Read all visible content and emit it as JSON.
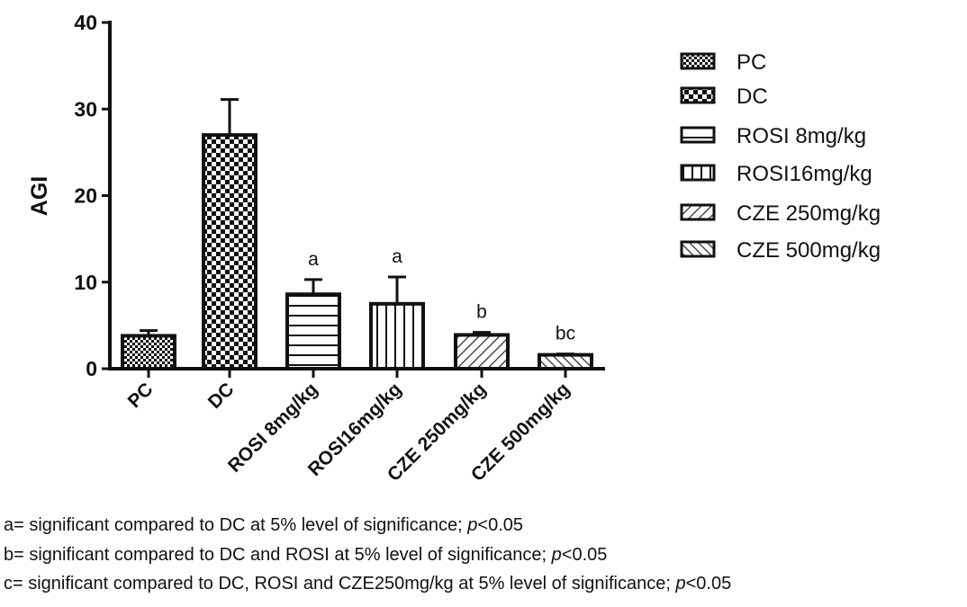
{
  "chart_data": {
    "type": "bar",
    "title": "",
    "xlabel": "",
    "ylabel": "AGI",
    "ylim": [
      0,
      40
    ],
    "yticks": [
      "0",
      "10",
      "20",
      "30",
      "40"
    ],
    "categories": [
      "PC",
      "DC",
      "ROSI 8mg/kg",
      "ROSI16mg/kg",
      "CZE 250mg/kg",
      "CZE 500mg/kg"
    ],
    "values": [
      3.8,
      27.0,
      8.6,
      7.5,
      3.9,
      1.6
    ],
    "error_upper": [
      4.4,
      31.1,
      10.3,
      10.6,
      4.2,
      1.7
    ],
    "annotations": [
      "",
      "",
      "a",
      "a",
      "b",
      "bc"
    ],
    "patterns": [
      "fine-check",
      "coarse-check",
      "horizontal",
      "vertical",
      "diag-right",
      "diag-left"
    ],
    "legend": {
      "placement": "right",
      "entries": [
        "PC",
        "DC",
        "ROSI 8mg/kg",
        "ROSI16mg/kg",
        "CZE 250mg/kg",
        "CZE 500mg/kg"
      ]
    },
    "grid": false
  },
  "footnotes": [
    {
      "text": "a= significant compared to DC at 5% level of significance; ",
      "p": "p",
      "tail": "<0.05"
    },
    {
      "text": "b= significant compared to DC and ROSI at 5% level of significance; ",
      "p": "p",
      "tail": "<0.05"
    },
    {
      "text": "c= significant compared to DC, ROSI and CZE250mg/kg at 5% level of significance; ",
      "p": "p",
      "tail": "<0.05"
    }
  ]
}
